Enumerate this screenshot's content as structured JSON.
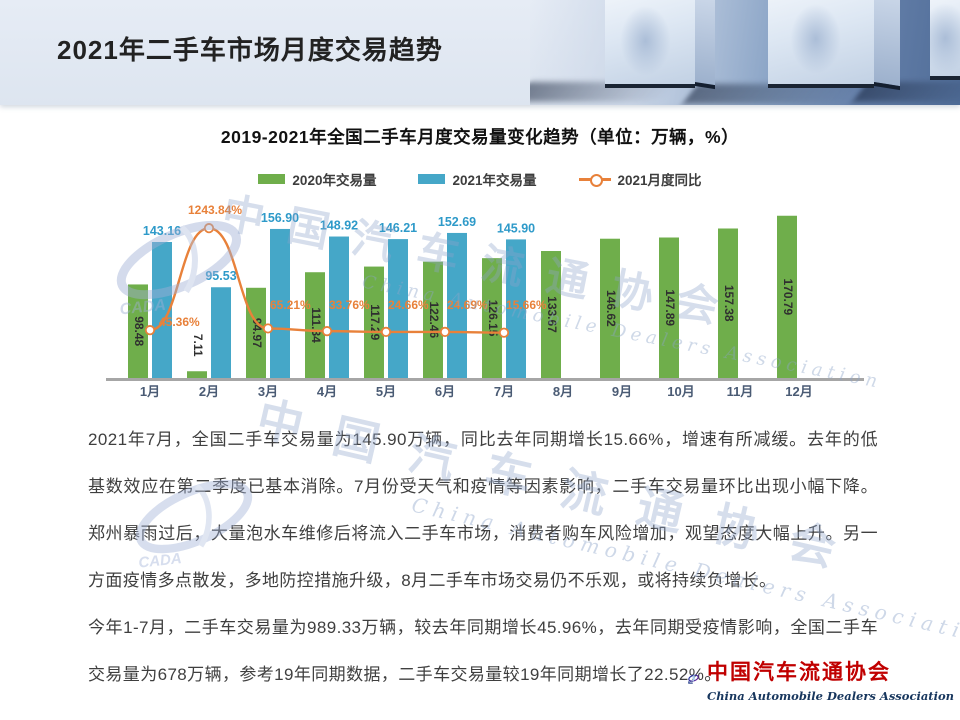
{
  "header": {
    "title": "2021年二手车市场月度交易趋势"
  },
  "chart_data": {
    "type": "bar",
    "title": "2019-2021年全国二手车月度交易量变化趋势（单位：万辆，%）",
    "categories": [
      "1月",
      "2月",
      "3月",
      "4月",
      "5月",
      "6月",
      "7月",
      "8月",
      "9月",
      "10月",
      "11月",
      "12月"
    ],
    "series": [
      {
        "name": "2020年交易量",
        "type": "bar",
        "color": "#6FAE4B",
        "values": [
          98.48,
          7.11,
          94.97,
          111.34,
          117.29,
          122.46,
          126.15,
          133.67,
          146.62,
          147.89,
          157.38,
          170.79
        ]
      },
      {
        "name": "2021年交易量",
        "type": "bar",
        "color": "#45A7C8",
        "values": [
          143.16,
          95.53,
          156.9,
          148.92,
          146.21,
          152.69,
          145.9,
          null,
          null,
          null,
          null,
          null
        ]
      },
      {
        "name": "2021月度同比",
        "type": "line",
        "color": "#E8813A",
        "unit": "%",
        "values": [
          45.36,
          1243.84,
          65.21,
          33.76,
          24.66,
          24.69,
          15.66,
          null,
          null,
          null,
          null,
          null
        ]
      }
    ],
    "ylabel": "万辆",
    "y2label": "%",
    "ylim": [
      0,
      180
    ],
    "grid": false,
    "legend_position": "top"
  },
  "analysis": {
    "paragraph1": "2021年7月，全国二手车交易量为145.90万辆，同比去年同期增长15.66%，增速有所减缓。去年的低基数效应在第二季度已基本消除。7月份受天气和疫情等因素影响，二手车交易量环比出现小幅下降。郑州暴雨过后，大量泡水车维修后将流入二手车市场，消费者购车风险增加，观望态度大幅上升。另一方面疫情多点散发，多地防控措施升级，8月二手车市场交易仍不乐观，或将持续负增长。",
    "paragraph2": "今年1-7月，二手车交易量为989.33万辆，较去年同期增长45.96%，去年同期受疫情影响，全国二手车交易量为678万辆，参考19年同期数据，二手车交易量较19年同期增长了22.52%。"
  },
  "watermark": {
    "cn": "中国汽车流通协会",
    "en": "China Automobile Dealers Association",
    "acronym": "CADA"
  },
  "footer": {
    "org_cn": "中国汽车流通协会",
    "org_en": "China Automobile Dealers Association",
    "logo_acronym": "CADA"
  },
  "colors": {
    "bar_2020": "#6FAE4B",
    "bar_2021": "#45A7C8",
    "yoy_line": "#E8813A",
    "footer_red": "#C00000",
    "month_label": "#4A5B74",
    "value_label_2021": "#2E9AC9"
  }
}
